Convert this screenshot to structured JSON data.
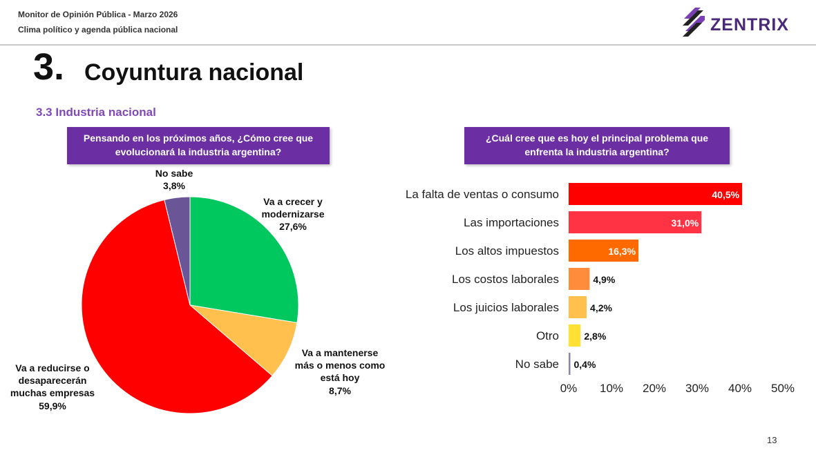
{
  "header": {
    "line1": "Monitor de Opinión Pública - Marzo 2026",
    "line2": "Clima político y agenda pública nacional",
    "logo_text": "ZENTRIX"
  },
  "section": {
    "number": "3.",
    "title": "Coyuntura nacional",
    "subsection": "3.3 Industria nacional"
  },
  "questions": {
    "q1_line1": "Pensando en los próximos años, ¿Cómo cree que",
    "q1_line2": "evolucionará la industria argentina?",
    "q2_line1": "¿Cuál cree que es hoy el principal problema que",
    "q2_line2": "enfrenta la industria argentina?"
  },
  "page_number": "13",
  "chart_data": [
    {
      "type": "pie",
      "title": "Pensando en los próximos años, ¿Cómo cree que evolucionará la industria argentina?",
      "slices": [
        {
          "label": "Va a crecer y modernizarse",
          "value": 27.6,
          "display": "27,6%",
          "color": "#00c75e"
        },
        {
          "label": "Va a mantenerse más o menos como está hoy",
          "value": 8.7,
          "display": "8,7%",
          "color": "#ffc04d"
        },
        {
          "label": "Va a reducirse o desaparecerán muchas empresas",
          "value": 59.9,
          "display": "59,9%",
          "color": "#ff0000"
        },
        {
          "label": "No sabe",
          "value": 3.8,
          "display": "3,8%",
          "color": "#6a5596"
        }
      ],
      "label_lines": {
        "s0": "Va a crecer y\nmodernizarse\n27,6%",
        "s1": "Va a mantenerse\nmás o menos como\nestá hoy\n8,7%",
        "s2": "Va a reducirse o\ndesaparecerán\nmuchas empresas\n59,9%",
        "s3": "No sabe\n3,8%"
      }
    },
    {
      "type": "bar",
      "orientation": "horizontal",
      "title": "¿Cuál cree que es hoy el principal problema que enfrenta la industria argentina?",
      "categories": [
        "La falta de ventas o consumo",
        "Las importaciones",
        "Los altos impuestos",
        "Los costos laborales",
        "Los juicios laborales",
        "Otro",
        "No sabe"
      ],
      "values": [
        40.5,
        31.0,
        16.3,
        4.9,
        4.2,
        2.8,
        0.4
      ],
      "value_labels": [
        "40,5%",
        "31,0%",
        "16,3%",
        "4,9%",
        "4,2%",
        "2,8%",
        "0,4%"
      ],
      "colors": [
        "#ff0000",
        "#ff3344",
        "#ff6a00",
        "#ff8c3a",
        "#ffc04d",
        "#ffe033",
        "#8a84a8"
      ],
      "xlim": [
        0,
        50
      ],
      "xticks": [
        0,
        10,
        20,
        30,
        40,
        50
      ],
      "xtick_labels": [
        "0%",
        "10%",
        "20%",
        "30%",
        "40%",
        "50%"
      ],
      "grid": false
    }
  ]
}
